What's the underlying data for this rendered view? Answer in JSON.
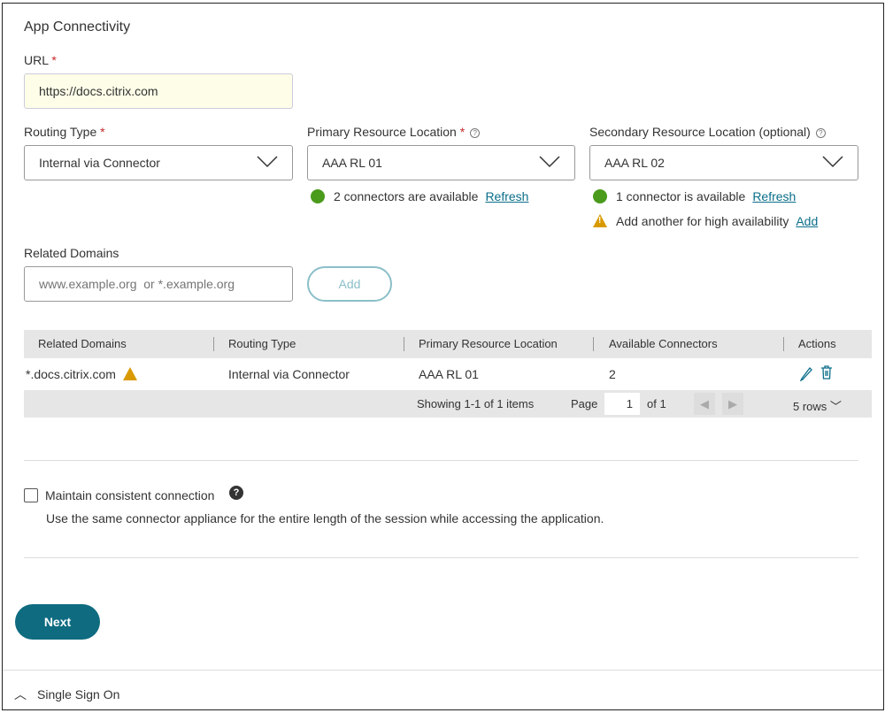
{
  "section_title": "App Connectivity",
  "url": {
    "label": "URL",
    "required": "*",
    "value": "https://docs.citrix.com"
  },
  "routing_type": {
    "label": "Routing Type",
    "required": "*",
    "value": "Internal via Connector"
  },
  "primary": {
    "label": "Primary Resource Location",
    "required": "*",
    "value": "AAA RL 01",
    "status": "2 connectors are available",
    "refresh": "Refresh"
  },
  "secondary": {
    "label": "Secondary Resource Location (optional)",
    "value": "AAA RL 02",
    "status": "1 connector is available",
    "refresh": "Refresh",
    "warning": "Add another for high availability",
    "add": "Add"
  },
  "related": {
    "label": "Related Domains",
    "placeholder": "www.example.org  or *.example.org",
    "add": "Add"
  },
  "table": {
    "headers": [
      "Related Domains",
      "Routing Type",
      "Primary Resource Location",
      "Available Connectors",
      "Actions"
    ],
    "rows": [
      {
        "domain": "*.docs.citrix.com",
        "routing": "Internal via Connector",
        "primary": "AAA RL 01",
        "connectors": "2"
      }
    ],
    "showing": "Showing 1-1 of 1 items",
    "page_label": "Page",
    "page": "1",
    "of": "of 1",
    "rows_per_page": "5 rows"
  },
  "consistent": {
    "label": "Maintain consistent connection",
    "checked": false,
    "description": "Use the same connector appliance for the entire length of the session while accessing the application."
  },
  "next": "Next",
  "sso": "Single Sign On",
  "colors": {
    "accent": "#0a6e8a",
    "ok": "#4a9a1c",
    "warn": "#d99a00",
    "url_bg": "#fdfde8"
  }
}
